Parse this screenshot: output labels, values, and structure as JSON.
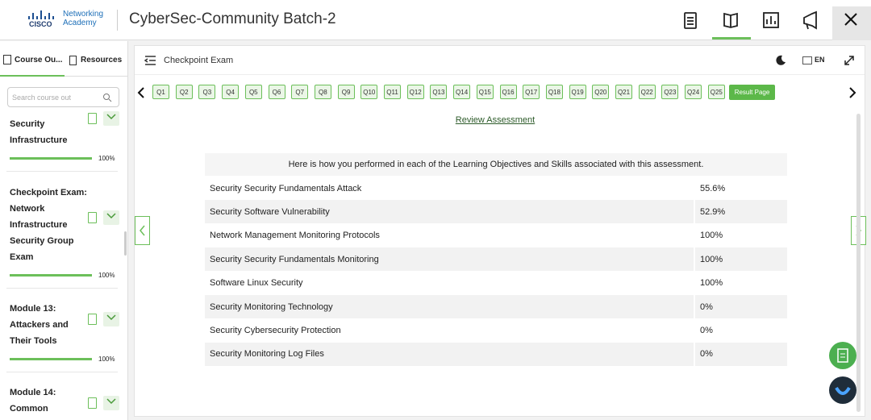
{
  "header": {
    "brand": "CISCO",
    "academy_line1": "Networking",
    "academy_line2": "Academy",
    "title": "CyberSec-Community Batch-2"
  },
  "sidebar": {
    "tabs": [
      "Course Ou...",
      "Resources"
    ],
    "search_placeholder": "Search course out",
    "items": [
      {
        "lines": [
          "Security",
          "Infrastructure"
        ],
        "progress": "100%"
      },
      {
        "lines": [
          "Checkpoint Exam:",
          "Network",
          "Infrastructure",
          "Security Group",
          "Exam"
        ],
        "progress": "100%"
      },
      {
        "lines": [
          "Module 13:",
          "Attackers and",
          "Their Tools"
        ],
        "progress": "100%"
      },
      {
        "lines": [
          "Module 14:",
          "Common"
        ]
      }
    ]
  },
  "toolbar": {
    "title": "Checkpoint Exam",
    "language": "EN"
  },
  "questions": [
    "Q1",
    "Q2",
    "Q3",
    "Q4",
    "Q5",
    "Q6",
    "Q7",
    "Q8",
    "Q9",
    "Q10",
    "Q11",
    "Q12",
    "Q13",
    "Q14",
    "Q15",
    "Q16",
    "Q17",
    "Q18",
    "Q19",
    "Q20",
    "Q21",
    "Q22",
    "Q23",
    "Q24",
    "Q25"
  ],
  "result_button": "Result Page",
  "review_link": "Review Assessment",
  "table": {
    "caption": "Here is how you performed in each of the Learning Objectives and Skills associated with this assessment.",
    "rows": [
      [
        "Security Security Fundamentals Attack",
        "55.6%"
      ],
      [
        "Security Software Vulnerability",
        "52.9%"
      ],
      [
        "Network Management Monitoring Protocols",
        "100%"
      ],
      [
        "Security Security Fundamentals Monitoring",
        "100%"
      ],
      [
        "Software Linux Security",
        "100%"
      ],
      [
        "Security Monitoring Technology",
        "0%"
      ],
      [
        "Security Cybersecurity Protection",
        "0%"
      ],
      [
        "Security Monitoring Log Files",
        "0%"
      ]
    ]
  }
}
